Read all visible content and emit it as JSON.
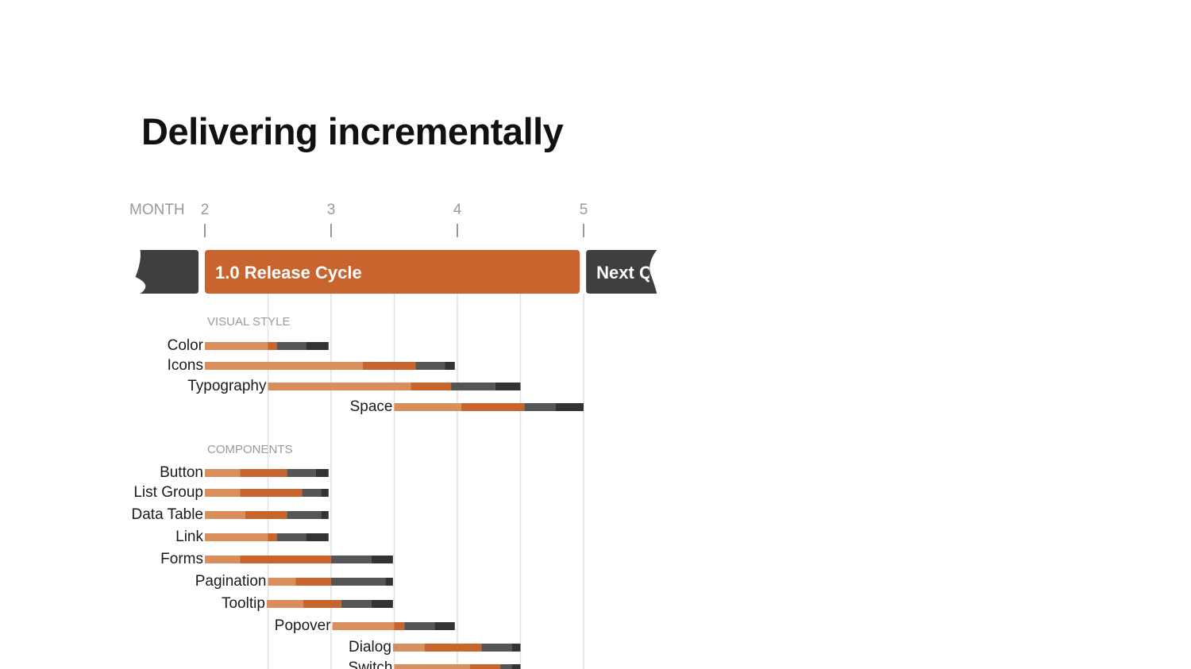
{
  "slide": {
    "title": "Delivering incrementally"
  },
  "colors": {
    "phase_light": "#d98e5d",
    "phase_orange": "#c8652e",
    "phase_gray": "#555555",
    "phase_dark": "#333333",
    "cycle_orange": "#c8652e",
    "cycle_dark": "#3f3f3f",
    "gridline": "#e2e2e2",
    "tick": "#999999"
  },
  "chart_data": {
    "type": "gantt",
    "title": "",
    "axis": {
      "label": "MONTH",
      "ticks": [
        2,
        3,
        4,
        5
      ],
      "range": [
        1.5,
        5.6
      ],
      "gridlines": [
        2.5,
        3,
        3.5,
        4,
        4.5,
        5
      ]
    },
    "cycles": [
      {
        "label": "",
        "start": 1.45,
        "end": 1.95,
        "color": "cycle_dark",
        "cut": "left"
      },
      {
        "label": "1.0 Release Cycle",
        "start": 2,
        "end": 4.97,
        "color": "cycle_orange"
      },
      {
        "label": "Next Q",
        "start": 5.02,
        "end": 5.58,
        "color": "cycle_dark",
        "cut": "right"
      }
    ],
    "sections": [
      {
        "name": "VISUAL STYLE",
        "tasks": [
          {
            "name": "Color",
            "segments": [
              [
                2.0,
                2.5
              ],
              [
                2.5,
                2.57
              ],
              [
                2.57,
                2.8
              ],
              [
                2.8,
                2.98
              ]
            ]
          },
          {
            "name": "Icons",
            "segments": [
              [
                2.0,
                3.25
              ],
              [
                3.25,
                3.67
              ],
              [
                3.67,
                3.9
              ],
              [
                3.9,
                3.98
              ]
            ]
          },
          {
            "name": "Typography",
            "segments": [
              [
                2.5,
                3.63
              ],
              [
                3.63,
                3.95
              ],
              [
                3.95,
                4.3
              ],
              [
                4.3,
                4.5
              ]
            ]
          },
          {
            "name": "Space",
            "segments": [
              [
                3.5,
                4.03
              ],
              [
                4.03,
                4.53
              ],
              [
                4.53,
                4.78
              ],
              [
                4.78,
                5.0
              ]
            ]
          }
        ]
      },
      {
        "name": "COMPONENTS",
        "tasks": [
          {
            "name": "Button",
            "segments": [
              [
                2.0,
                2.28
              ],
              [
                2.28,
                2.65
              ],
              [
                2.65,
                2.88
              ],
              [
                2.88,
                2.98
              ]
            ]
          },
          {
            "name": "List Group",
            "segments": [
              [
                2.0,
                2.28
              ],
              [
                2.28,
                2.77
              ],
              [
                2.77,
                2.92
              ],
              [
                2.92,
                2.98
              ]
            ]
          },
          {
            "name": "Data Table",
            "segments": [
              [
                2.0,
                2.32
              ],
              [
                2.32,
                2.65
              ],
              [
                2.65,
                2.92
              ],
              [
                2.92,
                2.98
              ]
            ]
          },
          {
            "name": "Link",
            "segments": [
              [
                2.0,
                2.5
              ],
              [
                2.5,
                2.57
              ],
              [
                2.57,
                2.8
              ],
              [
                2.8,
                2.98
              ]
            ]
          },
          {
            "name": "Forms",
            "segments": [
              [
                2.0,
                2.28
              ],
              [
                2.28,
                3.0
              ],
              [
                3.0,
                3.32
              ],
              [
                3.32,
                3.49
              ]
            ]
          },
          {
            "name": "Pagination",
            "segments": [
              [
                2.5,
                2.72
              ],
              [
                2.72,
                3.0
              ],
              [
                3.0,
                3.43
              ],
              [
                3.43,
                3.49
              ]
            ]
          },
          {
            "name": "Tooltip",
            "segments": [
              [
                2.49,
                2.78
              ],
              [
                2.78,
                3.08
              ],
              [
                3.08,
                3.32
              ],
              [
                3.32,
                3.49
              ]
            ]
          },
          {
            "name": "Popover",
            "segments": [
              [
                3.01,
                3.5
              ],
              [
                3.5,
                3.58
              ],
              [
                3.58,
                3.82
              ],
              [
                3.82,
                3.98
              ]
            ]
          },
          {
            "name": "Dialog",
            "segments": [
              [
                3.49,
                3.74
              ],
              [
                3.74,
                4.19
              ],
              [
                4.19,
                4.43
              ],
              [
                4.43,
                4.5
              ]
            ]
          },
          {
            "name": "Switch",
            "segments": [
              [
                3.5,
                4.1
              ],
              [
                4.1,
                4.34
              ],
              [
                4.34,
                4.43
              ],
              [
                4.43,
                4.5
              ]
            ]
          }
        ]
      }
    ]
  }
}
